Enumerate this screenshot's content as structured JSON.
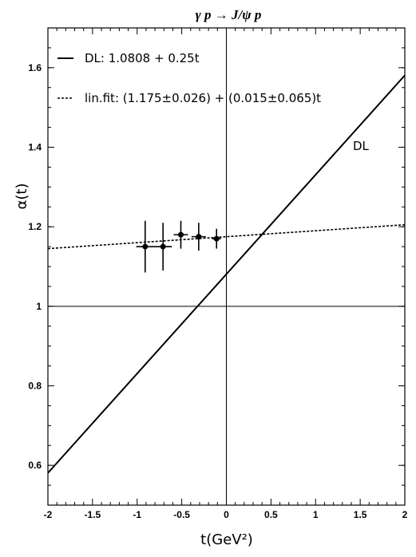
{
  "chart_data": {
    "type": "line",
    "title": "γ p → J/ψ p",
    "xlabel": "t(GeV²)",
    "ylabel": "α(t)",
    "xlim": [
      -2,
      2
    ],
    "ylim": [
      0.5,
      1.7
    ],
    "xticks": [
      -2,
      -1.5,
      -1,
      -0.5,
      0,
      0.5,
      1,
      1.5,
      2
    ],
    "xtick_labels": [
      "-2",
      "-1.5",
      "-1",
      "-0.5",
      "0",
      "0.5",
      "1",
      "1.5",
      "2"
    ],
    "yticks": [
      0.6,
      0.8,
      1,
      1.2,
      1.4,
      1.6
    ],
    "ytick_labels": [
      "0.6",
      "0.8",
      "1",
      "1.2",
      "1.4",
      "1.6"
    ],
    "reference_lines": {
      "x": 0,
      "y": 1
    },
    "series": [
      {
        "name": "DL: 1.0808 + 0.25t",
        "style": "solid",
        "intercept": 1.0808,
        "slope": 0.25,
        "annotation": "DL"
      },
      {
        "name": "lin.fit: (1.175±0.026) + (0.015±0.065)t",
        "style": "dashed",
        "intercept": 1.175,
        "slope": 0.015
      }
    ],
    "points": [
      {
        "x": -0.91,
        "y": 1.15,
        "yerr": 0.065,
        "xerr": 0.1
      },
      {
        "x": -0.71,
        "y": 1.15,
        "yerr": 0.06,
        "xerr": 0.1
      },
      {
        "x": -0.51,
        "y": 1.18,
        "yerr": 0.035,
        "xerr": 0.08
      },
      {
        "x": -0.31,
        "y": 1.175,
        "yerr": 0.035,
        "xerr": 0.08
      },
      {
        "x": -0.11,
        "y": 1.17,
        "yerr": 0.025,
        "xerr": 0.05
      }
    ]
  }
}
